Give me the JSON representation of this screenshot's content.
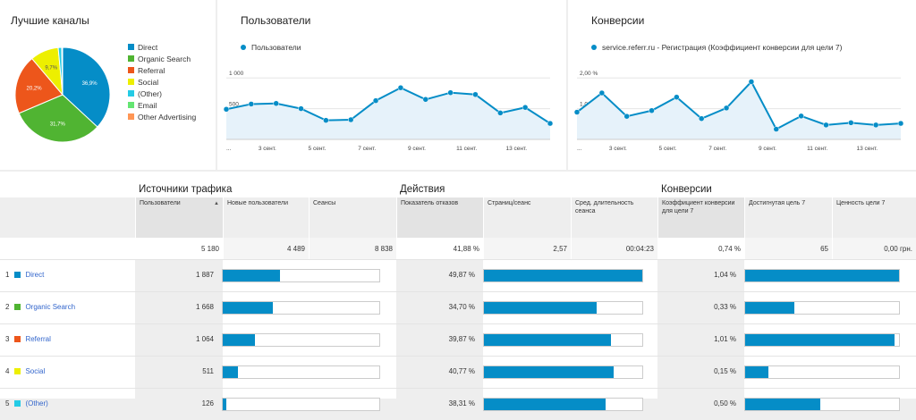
{
  "channels": {
    "title": "Лучшие каналы",
    "legend": [
      {
        "label": "Direct",
        "color": "#058dc7"
      },
      {
        "label": "Organic Search",
        "color": "#50b432"
      },
      {
        "label": "Referral",
        "color": "#ed561b"
      },
      {
        "label": "Social",
        "color": "#edef00"
      },
      {
        "label": "(Other)",
        "color": "#24cbe5"
      },
      {
        "label": "Email",
        "color": "#64e572"
      },
      {
        "label": "Other Advertising",
        "color": "#ff9655"
      }
    ],
    "pie_labels": [
      "36,9%",
      "31,7%",
      "20,2%",
      "9,7%"
    ]
  },
  "chart_data": [
    {
      "type": "pie",
      "categories": [
        "Direct",
        "Organic Search",
        "Referral",
        "Social",
        "(Other)",
        "Email",
        "Other Advertising"
      ],
      "values": [
        36.9,
        31.7,
        20.2,
        9.7,
        1.2,
        0.2,
        0.1
      ],
      "title": "Лучшие каналы"
    },
    {
      "type": "area",
      "title": "Пользователи",
      "series": [
        {
          "name": "Пользователи",
          "values": [
            490,
            575,
            585,
            500,
            310,
            320,
            630,
            840,
            650,
            760,
            730,
            430,
            520,
            260
          ]
        }
      ],
      "yticks": [
        "1 000",
        "500"
      ],
      "xticks": [
        "...",
        "3 сент.",
        "5 сент.",
        "7 сент.",
        "9 сент.",
        "11 сент.",
        "13 сент."
      ],
      "ylim": [
        0,
        1250
      ]
    },
    {
      "type": "area",
      "title": "Конверсии",
      "series": [
        {
          "name": "service.referr.ru - Регистрация (Коэффициент конверсии для цели 7)",
          "values": [
            0.85,
            1.45,
            0.72,
            0.9,
            1.32,
            0.65,
            0.98,
            1.8,
            0.32,
            0.73,
            0.45,
            0.52,
            0.45,
            0.5
          ]
        }
      ],
      "yticks": [
        "2,00 %",
        "1,00 %"
      ],
      "xticks": [
        "...",
        "3 сент.",
        "5 сент.",
        "7 сент.",
        "9 сент.",
        "11 сент.",
        "13 сент."
      ],
      "ylim": [
        0,
        2.4
      ]
    }
  ],
  "users_chart": {
    "title": "Пользователи",
    "legend": "Пользователи"
  },
  "conv_chart": {
    "title": "Конверсии",
    "legend": "service.referr.ru - Регистрация (Коэффициент конверсии для цели 7)"
  },
  "table": {
    "groups": [
      "Источники трафика",
      "Действия",
      "Конверсии"
    ],
    "columns": [
      "Пользователи",
      "Новые пользователи",
      "Сеансы",
      "Показатель отказов",
      "Страниц/сеанс",
      "Сред. длительность сеанса",
      "Коэффициент конверсии для цели 7",
      "Достигнутая цель 7",
      "Ценность цели 7"
    ],
    "sort_arrow": "▲",
    "totals": [
      "5 180",
      "4 489",
      "8 838",
      "41,88 %",
      "2,57",
      "00:04:23",
      "0,74 %",
      "65",
      "0,00 грн."
    ],
    "rows": [
      {
        "num": "1",
        "label": "Direct",
        "color": "#058dc7",
        "users": "1 887",
        "users_frac": 0.364,
        "bounce": "49,87 %",
        "pages_frac": 1.0,
        "conv": "1,04 %",
        "conv_frac": 1.0
      },
      {
        "num": "2",
        "label": "Organic Search",
        "color": "#50b432",
        "users": "1 668",
        "users_frac": 0.322,
        "bounce": "34,70 %",
        "pages_frac": 0.71,
        "conv": "0,33 %",
        "conv_frac": 0.32
      },
      {
        "num": "3",
        "label": "Referral",
        "color": "#ed561b",
        "users": "1 064",
        "users_frac": 0.205,
        "bounce": "39,87 %",
        "pages_frac": 0.8,
        "conv": "1,01 %",
        "conv_frac": 0.97
      },
      {
        "num": "4",
        "label": "Social",
        "color": "#edef00",
        "users": "511",
        "users_frac": 0.099,
        "bounce": "40,77 %",
        "pages_frac": 0.82,
        "conv": "0,15 %",
        "conv_frac": 0.15
      },
      {
        "num": "5",
        "label": "(Other)",
        "color": "#24cbe5",
        "users": "126",
        "users_frac": 0.025,
        "bounce": "38,31 %",
        "pages_frac": 0.77,
        "conv": "0,50 %",
        "conv_frac": 0.49
      }
    ]
  }
}
